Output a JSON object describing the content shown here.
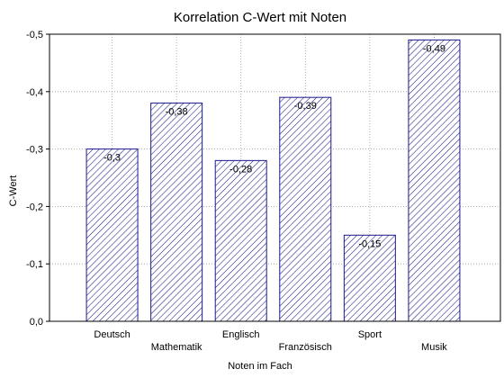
{
  "chart_data": {
    "type": "bar",
    "title": "Korrelation C-Wert mit Noten",
    "xlabel": "Noten im Fach",
    "ylabel": "C-Wert",
    "categories": [
      "Deutsch",
      "Mathematik",
      "Englisch",
      "Französisch",
      "Sport",
      "Musik"
    ],
    "values": [
      -0.3,
      -0.38,
      -0.28,
      -0.39,
      -0.15,
      -0.49
    ],
    "data_labels": [
      "-0,3",
      "-0,38",
      "-0,28",
      "-0,39",
      "-0,15",
      "-0,49"
    ],
    "ylim": [
      0,
      -0.5
    ],
    "y_ticks": [
      0,
      -0.1,
      -0.2,
      -0.3,
      -0.4,
      -0.5
    ],
    "y_tick_labels": [
      "0,0",
      "-0,1",
      "-0,2",
      "-0,3",
      "-0,4",
      "-0,5"
    ],
    "grid": true,
    "bar_fill": "hatched",
    "colors": {
      "bar_stroke": "#1a1a8c",
      "hatch": "#1a1a8c",
      "grid": "#9a9a9a"
    }
  }
}
